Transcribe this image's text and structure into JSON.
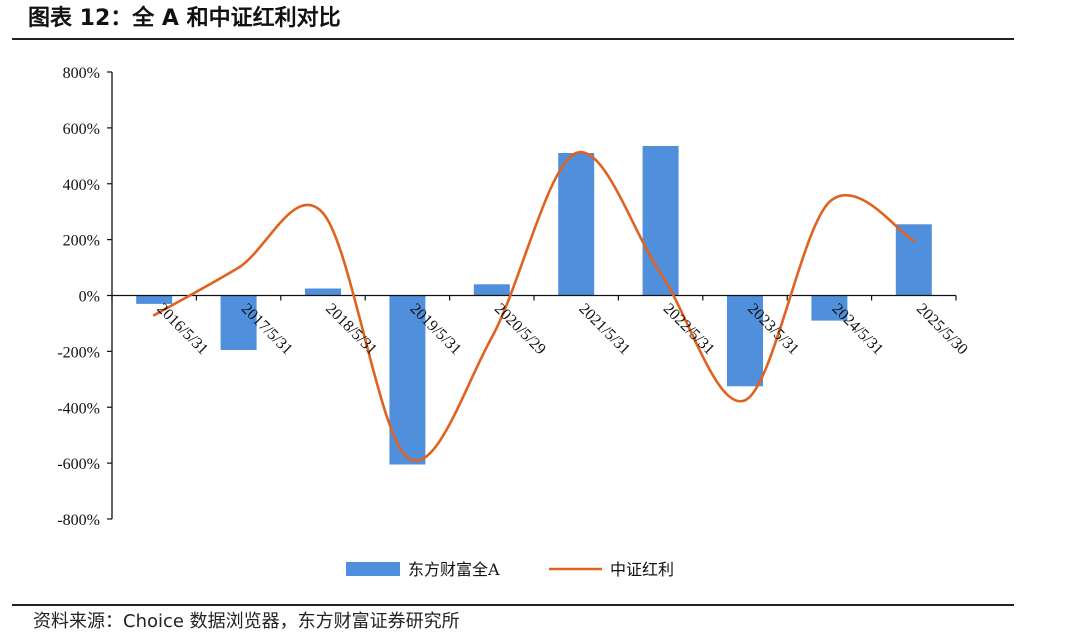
{
  "figure": {
    "title": "图表 12：全 A 和中证红利对比",
    "source": "资料来源：Choice 数据浏览器，东方财富证券研究所"
  },
  "colors": {
    "bar": "#4F8FDC",
    "line": "#E0621F",
    "axis": "#111111"
  },
  "chart_data": {
    "type": "bar",
    "categories": [
      "2016/5/31",
      "2017/5/31",
      "2018/5/31",
      "2019/5/31",
      "2020/5/29",
      "2021/5/31",
      "2022/5/31",
      "2023/5/31",
      "2024/5/31",
      "2025/5/30"
    ],
    "y_ticks": [
      "800%",
      "600%",
      "400%",
      "200%",
      "0%",
      "-200%",
      "-400%",
      "-600%",
      "-800%"
    ],
    "ylim": [
      -800,
      800
    ],
    "y_unit": "%",
    "grid": false,
    "legend_position": "bottom",
    "series": [
      {
        "name": "东方财富全A",
        "type": "bar",
        "values": [
          -30,
          -195,
          25,
          -605,
          40,
          510,
          535,
          -325,
          -90,
          255
        ]
      },
      {
        "name": "中证红利",
        "type": "line",
        "smooth": true,
        "values": [
          -70,
          100,
          295,
          -580,
          -150,
          510,
          80,
          -375,
          335,
          195
        ]
      }
    ]
  }
}
